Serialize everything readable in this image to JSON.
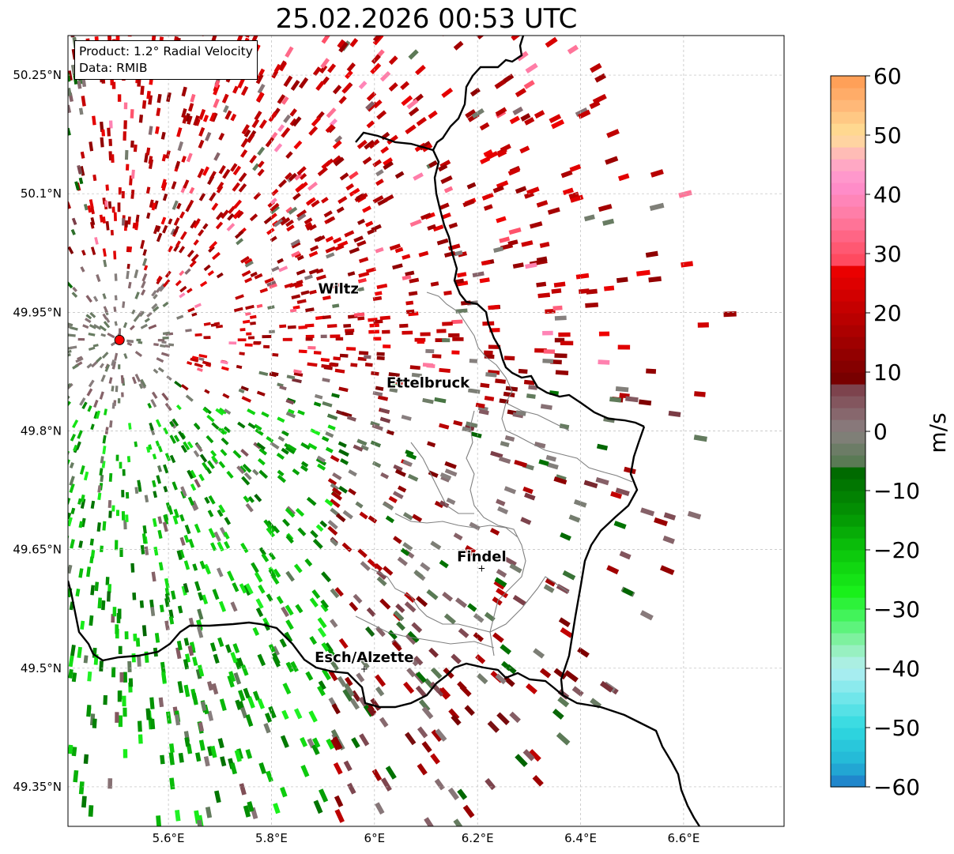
{
  "title": "25.02.2026 00:53 UTC",
  "info": {
    "product": "Product: 1.2° Radial Velocity",
    "source": "Data: RMIB"
  },
  "axes": {
    "lon_ticks": [
      {
        "value": 5.6,
        "label": "5.6°E"
      },
      {
        "value": 5.8,
        "label": "5.8°E"
      },
      {
        "value": 6.0,
        "label": "6°E"
      },
      {
        "value": 6.2,
        "label": "6.2°E"
      },
      {
        "value": 6.4,
        "label": "6.4°E"
      },
      {
        "value": 6.6,
        "label": "6.6°E"
      }
    ],
    "lat_ticks": [
      {
        "value": 50.25,
        "label": "50.25°N"
      },
      {
        "value": 50.1,
        "label": "50.1°N"
      },
      {
        "value": 49.95,
        "label": "49.95°N"
      },
      {
        "value": 49.8,
        "label": "49.8°N"
      },
      {
        "value": 49.65,
        "label": "49.65°N"
      },
      {
        "value": 49.5,
        "label": "49.5°N"
      },
      {
        "value": 49.35,
        "label": "49.35°N"
      }
    ],
    "lon_range": [
      5.405,
      6.795
    ],
    "lat_range": [
      49.3,
      50.3
    ]
  },
  "cities": [
    {
      "name": "Wiltz",
      "lon": 5.93,
      "lat": 49.966,
      "marker": false
    },
    {
      "name": "Ettelbruck",
      "lon": 6.104,
      "lat": 49.847,
      "marker": false
    },
    {
      "name": "Findel",
      "lon": 6.208,
      "lat": 49.627,
      "marker": true
    },
    {
      "name": "Esch/Alzette",
      "lon": 5.98,
      "lat": 49.5,
      "marker": true
    }
  ],
  "radar_site": {
    "lon": 5.505,
    "lat": 49.915
  },
  "colorbar": {
    "label": "m/s",
    "min": -60,
    "max": 60,
    "ticks": [
      {
        "value": 60,
        "label": "60"
      },
      {
        "value": 50,
        "label": "50"
      },
      {
        "value": 40,
        "label": "40"
      },
      {
        "value": 30,
        "label": "30"
      },
      {
        "value": 20,
        "label": "20"
      },
      {
        "value": 10,
        "label": "10"
      },
      {
        "value": 0,
        "label": "0"
      },
      {
        "value": -10,
        "label": "−10"
      },
      {
        "value": -20,
        "label": "−20"
      },
      {
        "value": -30,
        "label": "−30"
      },
      {
        "value": -40,
        "label": "−40"
      },
      {
        "value": -50,
        "label": "−50"
      },
      {
        "value": -60,
        "label": "−60"
      }
    ],
    "stops": [
      {
        "value": -60,
        "color": "#1f78c8"
      },
      {
        "value": -56,
        "color": "#23b5d6"
      },
      {
        "value": -50,
        "color": "#2fd9e0"
      },
      {
        "value": -45,
        "color": "#70e6ea"
      },
      {
        "value": -40,
        "color": "#b4eff2"
      },
      {
        "value": -36,
        "color": "#8ef0b0"
      },
      {
        "value": -32,
        "color": "#4cf46a"
      },
      {
        "value": -27,
        "color": "#19f01a"
      },
      {
        "value": -20,
        "color": "#0bc40b"
      },
      {
        "value": -14,
        "color": "#039403"
      },
      {
        "value": -6,
        "color": "#006400"
      },
      {
        "value": -5,
        "color": "#5a7a55"
      },
      {
        "value": 0,
        "color": "#888080"
      },
      {
        "value": 4,
        "color": "#865f66"
      },
      {
        "value": 8,
        "color": "#7a3a44"
      },
      {
        "value": 9,
        "color": "#780000"
      },
      {
        "value": 18,
        "color": "#b30000"
      },
      {
        "value": 28,
        "color": "#f00000"
      },
      {
        "value": 29,
        "color": "#ff4a60"
      },
      {
        "value": 36,
        "color": "#ff7aa0"
      },
      {
        "value": 42,
        "color": "#ff90d0"
      },
      {
        "value": 46,
        "color": "#ffb0c0"
      },
      {
        "value": 50,
        "color": "#ffe096"
      },
      {
        "value": 55,
        "color": "#ffb878"
      },
      {
        "value": 60,
        "color": "#ff9a50"
      }
    ]
  },
  "colors": {
    "border": "#000000",
    "canton": "#808080",
    "grid": "#bbbbbb",
    "site": "#ff0000"
  }
}
